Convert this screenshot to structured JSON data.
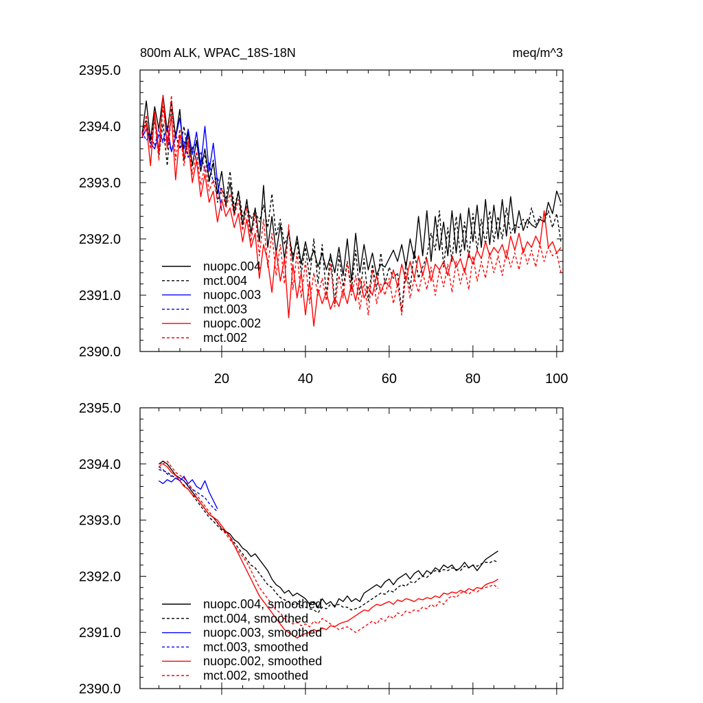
{
  "figure": {
    "title_left": "800m ALK, WPAC_18S-18N",
    "title_right": "meq/m^3"
  },
  "colors": {
    "nuopc.004": "#000000",
    "mct.004": "#000000",
    "nuopc.003": "#0000ff",
    "mct.003": "#0000ff",
    "nuopc.002": "#ff0000",
    "mct.002": "#ff0000"
  },
  "chart_data": [
    {
      "type": "line",
      "title": "800m ALK, WPAC_18S-18N",
      "units": "meq/m^3",
      "xlim": [
        0.5,
        101.5
      ],
      "ylim": [
        2390.0,
        2395.0
      ],
      "xticks": [
        20,
        40,
        60,
        80,
        100
      ],
      "xtick_labels": [
        "20",
        "40",
        "60",
        "80",
        "100"
      ],
      "yticks": [
        2390,
        2391,
        2392,
        2393,
        2394,
        2395
      ],
      "ytick_labels": [
        "2390.0",
        "2391.0",
        "2392.0",
        "2393.0",
        "2394.0",
        "2395.0"
      ],
      "legend_position": "bottom-left",
      "series": [
        {
          "name": "nuopc.004",
          "dashed": false,
          "x_start": 1,
          "values": [
            2393.85,
            2394.45,
            2393.75,
            2394.35,
            2393.95,
            2394.55,
            2393.9,
            2394.45,
            2393.8,
            2394.3,
            2393.4,
            2393.9,
            2393.3,
            2393.75,
            2393.2,
            2393.6,
            2393.05,
            2393.35,
            2392.8,
            2393.2,
            2392.6,
            2393.0,
            2392.45,
            2392.85,
            2392.25,
            2392.7,
            2392.1,
            2392.55,
            2391.95,
            2392.95,
            2391.85,
            2392.4,
            2391.75,
            2392.25,
            2391.65,
            2392.15,
            2391.6,
            2392.05,
            2391.55,
            2391.95,
            2391.6,
            2391.8,
            2391.5,
            2391.75,
            2391.45,
            2391.7,
            2391.4,
            2391.85,
            2391.35,
            2392.0,
            2391.25,
            2392.1,
            2391.4,
            2391.9,
            2391.45,
            2391.75,
            2391.35,
            2391.55,
            2391.5,
            2391.65,
            2391.8,
            2391.6,
            2391.9,
            2391.5,
            2392.0,
            2391.65,
            2392.4,
            2391.7,
            2392.5,
            2391.6,
            2392.4,
            2391.8,
            2392.3,
            2391.7,
            2392.5,
            2391.75,
            2392.45,
            2391.8,
            2392.55,
            2391.95,
            2392.6,
            2391.85,
            2392.7,
            2391.9,
            2392.6,
            2392.0,
            2392.7,
            2392.05,
            2392.75,
            2392.1,
            2392.5,
            2392.15,
            2392.35,
            2392.25,
            2392.2,
            2392.35,
            2392.3,
            2392.65,
            2392.45,
            2392.85,
            2392.65
          ]
        },
        {
          "name": "mct.004",
          "dashed": true,
          "x_start": 1,
          "values": [
            2393.9,
            2394.1,
            2393.7,
            2394.2,
            2393.5,
            2394.05,
            2393.3,
            2394.3,
            2393.85,
            2393.6,
            2394.0,
            2393.45,
            2393.6,
            2393.7,
            2393.35,
            2393.5,
            2393.0,
            2393.4,
            2392.65,
            2392.9,
            2392.7,
            2393.2,
            2392.55,
            2392.85,
            2392.4,
            2392.6,
            2392.35,
            2392.5,
            2392.3,
            2392.6,
            2392.2,
            2392.8,
            2392.05,
            2392.35,
            2391.9,
            2392.1,
            2391.7,
            2391.95,
            2391.4,
            2391.85,
            2391.3,
            2392.0,
            2391.2,
            2391.9,
            2391.0,
            2391.75,
            2390.85,
            2391.7,
            2391.15,
            2391.6,
            2391.1,
            2391.8,
            2391.0,
            2391.65,
            2390.9,
            2391.55,
            2391.1,
            2391.75,
            2391.2,
            2391.5,
            2391.3,
            2391.4,
            2390.7,
            2391.6,
            2391.1,
            2391.8,
            2391.3,
            2391.5,
            2391.7,
            2392.1,
            2391.8,
            2392.5,
            2391.5,
            2392.2,
            2391.6,
            2392.4,
            2391.7,
            2392.3,
            2391.65,
            2392.45,
            2391.8,
            2392.35,
            2391.9,
            2392.5,
            2391.95,
            2392.4,
            2392.0,
            2392.55,
            2392.1,
            2392.25,
            2392.2,
            2392.35,
            2392.2,
            2392.55,
            2392.25,
            2392.4,
            2392.3,
            2392.5,
            2392.2,
            2392.45,
            2391.95
          ]
        },
        {
          "name": "nuopc.003",
          "dashed": false,
          "x_start": 1,
          "values": [
            2393.8,
            2393.95,
            2393.7,
            2393.6,
            2393.85,
            2393.75,
            2394.0,
            2393.55,
            2393.8,
            2394.15,
            2393.6,
            2393.95,
            2393.5,
            2393.9,
            2393.3,
            2394.0,
            2393.2,
            2393.7,
            2393.0,
            2392.5
          ]
        },
        {
          "name": "mct.003",
          "dashed": true,
          "x_start": 1,
          "values": [
            2393.9,
            2393.75,
            2393.85,
            2393.65,
            2393.95,
            2393.7,
            2393.8,
            2393.55,
            2393.85,
            2393.6,
            2393.75,
            2393.45,
            2393.65,
            2393.4,
            2393.55,
            2393.2,
            2393.35,
            2393.0,
            2393.1,
            2392.8
          ]
        },
        {
          "name": "nuopc.002",
          "dashed": false,
          "x_start": 1,
          "values": [
            2393.85,
            2394.05,
            2393.3,
            2394.25,
            2393.55,
            2394.55,
            2393.6,
            2394.2,
            2393.05,
            2393.85,
            2393.45,
            2393.7,
            2393.0,
            2393.4,
            2392.75,
            2393.15,
            2392.65,
            2392.85,
            2392.3,
            2392.7,
            2392.4,
            2392.55,
            2392.2,
            2392.45,
            2391.95,
            2392.35,
            2391.85,
            2392.1,
            2391.3,
            2391.9,
            2391.6,
            2391.05,
            2391.8,
            2391.25,
            2391.65,
            2390.6,
            2391.55,
            2390.95,
            2391.4,
            2390.65,
            2391.25,
            2390.45,
            2391.1,
            2390.85,
            2391.05,
            2390.75,
            2390.95,
            2390.8,
            2391.1,
            2390.85,
            2391.2,
            2390.9,
            2391.3,
            2390.95,
            2391.15,
            2391.0,
            2391.35,
            2391.05,
            2391.25,
            2391.15,
            2391.45,
            2391.15,
            2391.55,
            2391.25,
            2391.6,
            2391.3,
            2391.7,
            2391.35,
            2391.65,
            2391.25,
            2391.55,
            2391.45,
            2391.6,
            2391.35,
            2391.7,
            2391.5,
            2391.65,
            2391.4,
            2391.75,
            2391.55,
            2391.8,
            2391.65,
            2391.95,
            2391.7,
            2391.85,
            2391.75,
            2391.9,
            2391.65,
            2392.05,
            2391.8,
            2392.1,
            2391.75,
            2391.95,
            2391.85,
            2392.05,
            2391.9,
            2392.5,
            2391.85,
            2391.95,
            2391.75,
            2391.85
          ]
        },
        {
          "name": "mct.002",
          "dashed": true,
          "x_start": 1,
          "values": [
            2393.8,
            2394.2,
            2393.6,
            2394.1,
            2393.4,
            2394.35,
            2393.7,
            2394.55,
            2393.4,
            2393.95,
            2393.3,
            2393.8,
            2393.15,
            2393.55,
            2392.95,
            2393.3,
            2392.85,
            2393.05,
            2392.7,
            2392.9,
            2392.55,
            2392.8,
            2392.4,
            2392.7,
            2392.15,
            2392.55,
            2391.95,
            2392.45,
            2391.7,
            2392.35,
            2391.5,
            2392.1,
            2391.35,
            2391.9,
            2391.2,
            2392.25,
            2391.1,
            2391.75,
            2390.95,
            2391.6,
            2390.85,
            2391.4,
            2391.0,
            2391.3,
            2390.9,
            2391.55,
            2390.8,
            2391.35,
            2390.95,
            2391.6,
            2391.0,
            2391.35,
            2390.75,
            2391.25,
            2390.65,
            2391.45,
            2390.85,
            2391.2,
            2391.0,
            2391.3,
            2390.85,
            2391.2,
            2390.65,
            2391.4,
            2390.95,
            2391.3,
            2391.05,
            2391.4,
            2391.1,
            2391.5,
            2391.0,
            2391.45,
            2391.15,
            2391.55,
            2391.05,
            2391.6,
            2391.2,
            2391.5,
            2391.1,
            2391.7,
            2391.25,
            2391.6,
            2391.3,
            2391.75,
            2391.4,
            2391.7,
            2391.35,
            2391.8,
            2391.5,
            2391.75,
            2391.45,
            2391.85,
            2391.55,
            2391.8,
            2391.5,
            2391.9,
            2391.6,
            2391.85,
            2391.7,
            2391.75,
            2391.4
          ]
        }
      ]
    },
    {
      "type": "line",
      "title": "",
      "xlim": [
        0.5,
        101.5
      ],
      "ylim": [
        2390.0,
        2395.0
      ],
      "xticks": [
        20,
        40,
        60,
        80,
        100
      ],
      "yticks": [
        2390,
        2391,
        2392,
        2393,
        2394,
        2395
      ],
      "ytick_labels": [
        "2390.0",
        "2391.0",
        "2392.0",
        "2393.0",
        "2394.0",
        "2395.0"
      ],
      "legend_position": "bottom-left",
      "series": [
        {
          "name": "nuopc.004, smoothed",
          "dashed": false,
          "x_start": 5,
          "values": [
            2394.0,
            2394.05,
            2394.0,
            2393.9,
            2393.8,
            2393.75,
            2393.7,
            2393.6,
            2393.5,
            2393.4,
            2393.3,
            2393.2,
            2393.1,
            2393.05,
            2392.95,
            2392.85,
            2392.8,
            2392.75,
            2392.65,
            2392.6,
            2392.5,
            2392.45,
            2392.35,
            2392.4,
            2392.3,
            2392.2,
            2392.1,
            2391.95,
            2391.85,
            2391.8,
            2391.7,
            2391.75,
            2391.65,
            2391.7,
            2391.65,
            2391.6,
            2391.5,
            2391.55,
            2391.45,
            2391.6,
            2391.5,
            2391.55,
            2391.45,
            2391.6,
            2391.55,
            2391.65,
            2391.55,
            2391.6,
            2391.55,
            2391.7,
            2391.75,
            2391.8,
            2391.85,
            2391.8,
            2391.9,
            2391.95,
            2391.85,
            2391.95,
            2392.0,
            2392.05,
            2391.95,
            2392.05,
            2392.1,
            2392.0,
            2392.1,
            2392.05,
            2392.15,
            2392.1,
            2392.2,
            2392.15,
            2392.2,
            2392.1,
            2392.15,
            2392.25,
            2392.15,
            2392.2,
            2392.1,
            2392.2,
            2392.3,
            2392.35,
            2392.4,
            2392.45
          ]
        },
        {
          "name": "mct.004, smoothed",
          "dashed": true,
          "x_start": 5,
          "values": [
            2393.9,
            2393.88,
            2393.85,
            2393.8,
            2393.75,
            2393.7,
            2393.62,
            2393.55,
            2393.45,
            2393.35,
            2393.25,
            2393.15,
            2393.05,
            2392.98,
            2392.9,
            2392.82,
            2392.78,
            2392.7,
            2392.6,
            2392.5,
            2392.4,
            2392.3,
            2392.2,
            2392.15,
            2392.05,
            2391.95,
            2391.85,
            2391.8,
            2391.7,
            2391.62,
            2391.58,
            2391.55,
            2391.5,
            2391.52,
            2391.48,
            2391.45,
            2391.42,
            2391.4,
            2391.35,
            2391.45,
            2391.42,
            2391.5,
            2391.48,
            2391.5,
            2391.45,
            2391.45,
            2391.4,
            2391.42,
            2391.45,
            2391.5,
            2391.55,
            2391.6,
            2391.65,
            2391.7,
            2391.68,
            2391.75,
            2391.72,
            2391.8,
            2391.85,
            2391.82,
            2391.9,
            2391.88,
            2391.95,
            2392.0,
            2391.98,
            2392.05,
            2392.1,
            2392.08,
            2392.12,
            2392.1,
            2392.15,
            2392.12,
            2392.1,
            2392.18,
            2392.15,
            2392.2,
            2392.18,
            2392.22,
            2392.25,
            2392.24,
            2392.28,
            2392.25
          ]
        },
        {
          "name": "nuopc.003, smoothed",
          "dashed": false,
          "x_start": 5,
          "values": [
            2393.7,
            2393.65,
            2393.72,
            2393.68,
            2393.75,
            2393.7,
            2393.78,
            2393.65,
            2393.72,
            2393.6,
            2393.55,
            2393.7,
            2393.5,
            2393.35,
            2393.2
          ]
        },
        {
          "name": "mct.003, smoothed",
          "dashed": true,
          "x_start": 5,
          "values": [
            2393.95,
            2393.9,
            2393.82,
            2393.78,
            2393.8,
            2393.75,
            2393.7,
            2393.62,
            2393.55,
            2393.5,
            2393.45,
            2393.4,
            2393.3,
            2393.22,
            2393.15
          ]
        },
        {
          "name": "nuopc.002, smoothed",
          "dashed": false,
          "x_start": 5,
          "values": [
            2394.0,
            2394.0,
            2393.95,
            2393.85,
            2393.8,
            2393.7,
            2393.6,
            2393.55,
            2393.45,
            2393.4,
            2393.3,
            2393.2,
            2393.1,
            2393.05,
            2393.0,
            2392.9,
            2392.8,
            2392.7,
            2392.55,
            2392.4,
            2392.25,
            2392.1,
            2391.95,
            2391.8,
            2391.65,
            2391.55,
            2391.45,
            2391.35,
            2391.25,
            2391.15,
            2391.05,
            2391.0,
            2390.95,
            2390.9,
            2390.95,
            2390.98,
            2391.0,
            2391.05,
            2391.02,
            2391.08,
            2391.05,
            2391.12,
            2391.1,
            2391.15,
            2391.18,
            2391.2,
            2391.25,
            2391.3,
            2391.35,
            2391.4,
            2391.38,
            2391.45,
            2391.5,
            2391.48,
            2391.52,
            2391.55,
            2391.5,
            2391.58,
            2391.55,
            2391.6,
            2391.58,
            2391.55,
            2391.6,
            2391.58,
            2391.62,
            2391.6,
            2391.65,
            2391.62,
            2391.7,
            2391.68,
            2391.72,
            2391.7,
            2391.75,
            2391.72,
            2391.78,
            2391.75,
            2391.8,
            2391.78,
            2391.85,
            2391.88,
            2391.9,
            2391.95
          ]
        },
        {
          "name": "mct.002, smoothed",
          "dashed": true,
          "x_start": 5,
          "values": [
            2393.95,
            2394.0,
            2394.05,
            2393.95,
            2393.85,
            2393.8,
            2393.75,
            2393.65,
            2393.55,
            2393.45,
            2393.35,
            2393.25,
            2393.15,
            2393.05,
            2392.95,
            2392.85,
            2392.75,
            2392.65,
            2392.55,
            2392.45,
            2392.35,
            2392.25,
            2392.1,
            2391.95,
            2391.8,
            2391.7,
            2391.6,
            2391.5,
            2391.4,
            2391.35,
            2391.25,
            2391.2,
            2391.15,
            2391.18,
            2391.12,
            2391.15,
            2391.1,
            2391.2,
            2391.15,
            2391.25,
            2391.2,
            2391.15,
            2391.1,
            2391.05,
            2391.08,
            2391.1,
            2391.05,
            2391.0,
            2391.05,
            2391.1,
            2391.15,
            2391.2,
            2391.15,
            2391.25,
            2391.2,
            2391.3,
            2391.25,
            2391.35,
            2391.3,
            2391.38,
            2391.35,
            2391.4,
            2391.38,
            2391.45,
            2391.42,
            2391.5,
            2391.45,
            2391.55,
            2391.5,
            2391.6,
            2391.65,
            2391.62,
            2391.7,
            2391.72,
            2391.68,
            2391.75,
            2391.72,
            2391.78,
            2391.8,
            2391.82,
            2391.85,
            2391.78
          ]
        }
      ]
    }
  ]
}
